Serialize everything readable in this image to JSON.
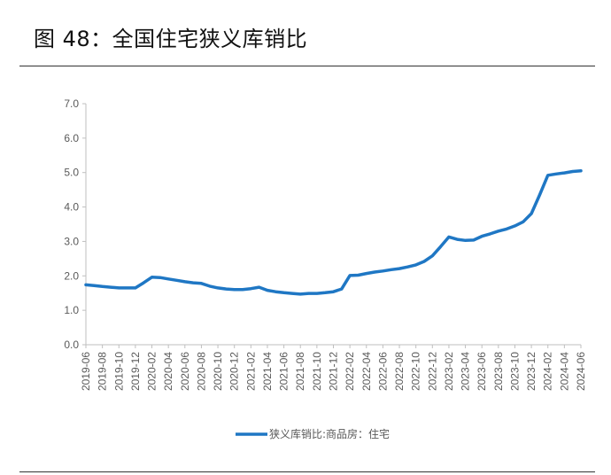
{
  "header": {
    "title": "图 48：全国住宅狭义库销比"
  },
  "chart_data": {
    "type": "line",
    "ylim": [
      0,
      7
    ],
    "y_ticks": [
      "0.0",
      "1.0",
      "2.0",
      "3.0",
      "4.0",
      "5.0",
      "6.0",
      "7.0"
    ],
    "x_tick_labels": [
      "2019-06",
      "2019-08",
      "2019-10",
      "2019-12",
      "2020-02",
      "2020-04",
      "2020-06",
      "2020-08",
      "2020-10",
      "2020-12",
      "2021-02",
      "2021-04",
      "2021-06",
      "2021-08",
      "2021-10",
      "2021-12",
      "2022-02",
      "2022-04",
      "2022-06",
      "2022-08",
      "2022-10",
      "2022-12",
      "2023-02",
      "2023-04",
      "2023-06",
      "2023-08",
      "2023-10",
      "2023-12",
      "2024-02",
      "2024-04",
      "2024-06"
    ],
    "legend_position": "bottom",
    "grid": false,
    "series": [
      {
        "name": "狭义库销比:商品房：住宅",
        "color": "#1f77c4",
        "x": [
          "2019-06",
          "2019-07",
          "2019-08",
          "2019-09",
          "2019-10",
          "2019-11",
          "2019-12",
          "2020-01",
          "2020-02",
          "2020-03",
          "2020-04",
          "2020-05",
          "2020-06",
          "2020-07",
          "2020-08",
          "2020-09",
          "2020-10",
          "2020-11",
          "2020-12",
          "2021-01",
          "2021-02",
          "2021-03",
          "2021-04",
          "2021-05",
          "2021-06",
          "2021-07",
          "2021-08",
          "2021-09",
          "2021-10",
          "2021-11",
          "2021-12",
          "2022-01",
          "2022-02",
          "2022-03",
          "2022-04",
          "2022-05",
          "2022-06",
          "2022-07",
          "2022-08",
          "2022-09",
          "2022-10",
          "2022-11",
          "2022-12",
          "2023-01",
          "2023-02",
          "2023-03",
          "2023-04",
          "2023-05",
          "2023-06",
          "2023-07",
          "2023-08",
          "2023-09",
          "2023-10",
          "2023-11",
          "2023-12",
          "2024-01",
          "2024-02",
          "2024-03",
          "2024-04",
          "2024-05",
          "2024-06"
        ],
        "values": [
          1.74,
          1.72,
          1.69,
          1.67,
          1.65,
          1.65,
          1.65,
          1.8,
          1.96,
          1.95,
          1.91,
          1.87,
          1.83,
          1.8,
          1.78,
          1.7,
          1.65,
          1.62,
          1.6,
          1.6,
          1.63,
          1.67,
          1.58,
          1.54,
          1.51,
          1.49,
          1.47,
          1.49,
          1.49,
          1.51,
          1.54,
          1.62,
          2.01,
          2.02,
          2.07,
          2.11,
          2.14,
          2.18,
          2.21,
          2.26,
          2.32,
          2.42,
          2.58,
          2.85,
          3.13,
          3.06,
          3.03,
          3.04,
          3.15,
          3.22,
          3.3,
          3.36,
          3.45,
          3.57,
          3.81,
          4.35,
          4.92,
          4.96,
          4.99,
          5.03,
          5.05
        ]
      }
    ]
  }
}
